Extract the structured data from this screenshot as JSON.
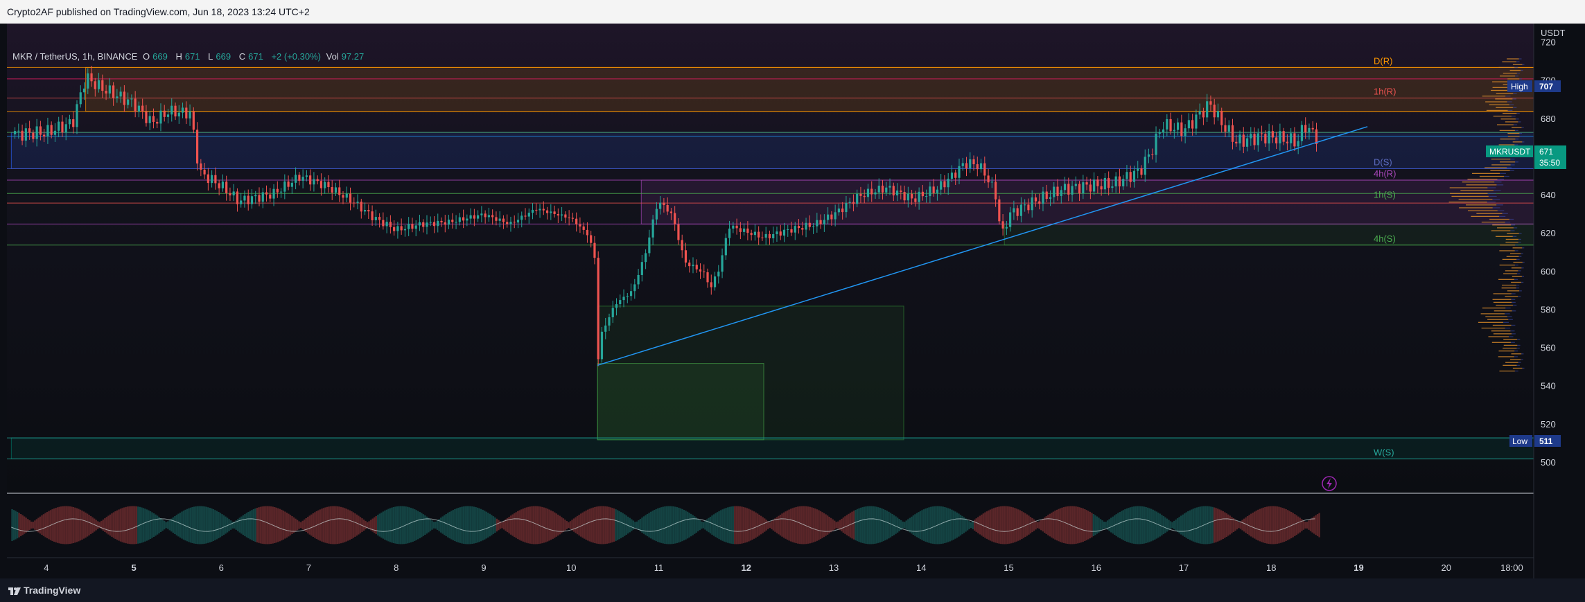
{
  "header": {
    "published_by": "Crypto2AF published on TradingView.com, Jun 18, 2023 13:24 UTC+2"
  },
  "legend": {
    "symbol": "MKR / TetherUS, 1h, BINANCE",
    "o_label": "O",
    "o_value": "669",
    "h_label": "H",
    "h_value": "671",
    "l_label": "L",
    "l_value": "669",
    "c_label": "C",
    "c_value": "671",
    "change": "+2 (+0.30%)",
    "vol_label": "Vol",
    "vol_value": "97.27"
  },
  "price_axis": {
    "currency": "USDT",
    "high_label": "High",
    "high_value": "707",
    "low_label": "Low",
    "low_value": "511",
    "symbol_tag": "MKRUSDT",
    "last_price": "671",
    "countdown": "35:50"
  },
  "oscillator_axis": [
    "1",
    "0",
    "−1"
  ],
  "footer": {
    "brand": "TradingView"
  },
  "colors": {
    "up": "#26a69a",
    "down": "#ef5350",
    "trendline": "#2196f3",
    "orange": "#ff9800",
    "purple": "#ab47bc",
    "blue": "#3f51b5"
  },
  "chart_data": {
    "type": "candlestick",
    "symbol": "MKR / TetherUS",
    "timeframe": "1h",
    "exchange": "BINANCE",
    "y_unit": "USDT",
    "ylim": [
      484,
      730
    ],
    "xlim": [
      3.55,
      21.0
    ],
    "x_ticks": [
      {
        "v": 4,
        "label": "4",
        "bold": false
      },
      {
        "v": 5,
        "label": "5",
        "bold": true
      },
      {
        "v": 6,
        "label": "6",
        "bold": false
      },
      {
        "v": 7,
        "label": "7",
        "bold": false
      },
      {
        "v": 8,
        "label": "8",
        "bold": false
      },
      {
        "v": 9,
        "label": "9",
        "bold": false
      },
      {
        "v": 10,
        "label": "10",
        "bold": false
      },
      {
        "v": 11,
        "label": "11",
        "bold": false
      },
      {
        "v": 12,
        "label": "12",
        "bold": true
      },
      {
        "v": 13,
        "label": "13",
        "bold": false
      },
      {
        "v": 14,
        "label": "14",
        "bold": false
      },
      {
        "v": 15,
        "label": "15",
        "bold": false
      },
      {
        "v": 16,
        "label": "16",
        "bold": false
      },
      {
        "v": 17,
        "label": "17",
        "bold": false
      },
      {
        "v": 18,
        "label": "18",
        "bold": false
      },
      {
        "v": 19,
        "label": "19",
        "bold": true
      },
      {
        "v": 20,
        "label": "20",
        "bold": false
      },
      {
        "v": 20.75,
        "label": "18:00",
        "bold": false
      }
    ],
    "y_ticks": [
      500,
      520,
      540,
      560,
      580,
      600,
      620,
      640,
      660,
      680,
      700,
      720
    ],
    "price_path": [
      [
        3.6,
        672
      ],
      [
        4.0,
        673
      ],
      [
        4.3,
        678
      ],
      [
        4.45,
        702
      ],
      [
        4.6,
        697
      ],
      [
        5.0,
        688
      ],
      [
        5.2,
        678
      ],
      [
        5.4,
        684
      ],
      [
        5.65,
        683
      ],
      [
        5.75,
        652
      ],
      [
        6.0,
        645
      ],
      [
        6.2,
        637
      ],
      [
        6.6,
        641
      ],
      [
        6.9,
        650
      ],
      [
        7.2,
        645
      ],
      [
        7.5,
        637
      ],
      [
        7.75,
        628
      ],
      [
        8.0,
        622
      ],
      [
        8.3,
        625
      ],
      [
        8.6,
        626
      ],
      [
        9.0,
        630
      ],
      [
        9.3,
        625
      ],
      [
        9.6,
        633
      ],
      [
        10.0,
        628
      ],
      [
        10.2,
        619
      ],
      [
        10.28,
        605
      ],
      [
        10.3,
        552
      ],
      [
        10.35,
        568
      ],
      [
        10.5,
        583
      ],
      [
        10.7,
        590
      ],
      [
        10.85,
        610
      ],
      [
        10.95,
        630
      ],
      [
        11.0,
        637
      ],
      [
        11.15,
        630
      ],
      [
        11.3,
        605
      ],
      [
        11.5,
        600
      ],
      [
        11.6,
        592
      ],
      [
        11.7,
        603
      ],
      [
        11.8,
        624
      ],
      [
        12.0,
        621
      ],
      [
        12.2,
        618
      ],
      [
        12.5,
        622
      ],
      [
        12.8,
        625
      ],
      [
        13.0,
        630
      ],
      [
        13.3,
        640
      ],
      [
        13.6,
        644
      ],
      [
        13.9,
        638
      ],
      [
        14.2,
        644
      ],
      [
        14.35,
        650
      ],
      [
        14.5,
        657
      ],
      [
        14.65,
        656
      ],
      [
        14.75,
        650
      ],
      [
        14.85,
        640
      ],
      [
        14.92,
        618
      ],
      [
        15.0,
        630
      ],
      [
        15.3,
        637
      ],
      [
        15.6,
        643
      ],
      [
        15.9,
        645
      ],
      [
        16.2,
        646
      ],
      [
        16.5,
        653
      ],
      [
        16.65,
        665
      ],
      [
        16.75,
        677
      ],
      [
        17.0,
        674
      ],
      [
        17.3,
        688
      ],
      [
        17.4,
        680
      ],
      [
        17.6,
        668
      ],
      [
        17.9,
        671
      ],
      [
        18.1,
        670
      ],
      [
        18.3,
        668
      ],
      [
        18.38,
        677
      ],
      [
        18.5,
        671
      ],
      [
        18.55,
        670
      ]
    ],
    "trendline": [
      [
        10.3,
        551
      ],
      [
        19.1,
        676
      ]
    ],
    "horizontal_lines": [
      {
        "y": 707,
        "color": "#ff9800"
      },
      {
        "y": 701,
        "color": "#e91e63"
      },
      {
        "y": 691,
        "color": "#ef5350"
      },
      {
        "y": 684,
        "color": "#ff9800"
      },
      {
        "y": 673,
        "color": "#4caf50"
      },
      {
        "y": 671,
        "color": "#2196f3"
      },
      {
        "y": 654,
        "color": "#3f51b5"
      },
      {
        "y": 648,
        "color": "#ab47bc"
      },
      {
        "y": 641,
        "color": "#4caf50"
      },
      {
        "y": 636,
        "color": "#ef5350"
      },
      {
        "y": 625,
        "color": "#ab47bc"
      },
      {
        "y": 614,
        "color": "#4caf50"
      },
      {
        "y": 513,
        "color": "#26a69a"
      },
      {
        "y": 502,
        "color": "#26a69a"
      }
    ],
    "zones": [
      {
        "x0": 4.45,
        "x1": 21.0,
        "y0": 684,
        "y1": 707,
        "color": "#ff9800"
      },
      {
        "x0": 3.6,
        "x1": 21.0,
        "y0": 654,
        "y1": 673,
        "color": "#2962ff"
      },
      {
        "x0": 10.8,
        "x1": 21.0,
        "y0": 625,
        "y1": 648,
        "color": "#ab47bc"
      },
      {
        "x0": 10.3,
        "x1": 13.8,
        "y0": 512,
        "y1": 582,
        "color": "#2e7d32"
      },
      {
        "x0": 10.3,
        "x1": 12.2,
        "y0": 512,
        "y1": 552,
        "color": "#43a047"
      },
      {
        "x0": 3.6,
        "x1": 21.0,
        "y0": 502,
        "y1": 513,
        "color": "#00796b"
      },
      {
        "x0": 14.95,
        "x1": 21.0,
        "y0": 614,
        "y1": 625,
        "color": "#2e7d32"
      }
    ],
    "level_labels": [
      {
        "text": "D(R)",
        "y": 708,
        "color": "#ff9800"
      },
      {
        "text": "1h(R)",
        "y": 692,
        "color": "#ef5350"
      },
      {
        "text": "D(S)",
        "y": 655,
        "color": "#5c6bc0"
      },
      {
        "text": "4h(R)",
        "y": 649,
        "color": "#ab47bc"
      },
      {
        "text": "1h(S)",
        "y": 638,
        "color": "#4caf50"
      },
      {
        "text": "4h(S)",
        "y": 615,
        "color": "#4caf50"
      },
      {
        "text": "W(S)",
        "y": 503,
        "color": "#26a69a"
      }
    ],
    "oscillator": {
      "ylim": [
        -1.3,
        1.3
      ],
      "ticks": [
        1,
        0,
        -1
      ]
    }
  }
}
